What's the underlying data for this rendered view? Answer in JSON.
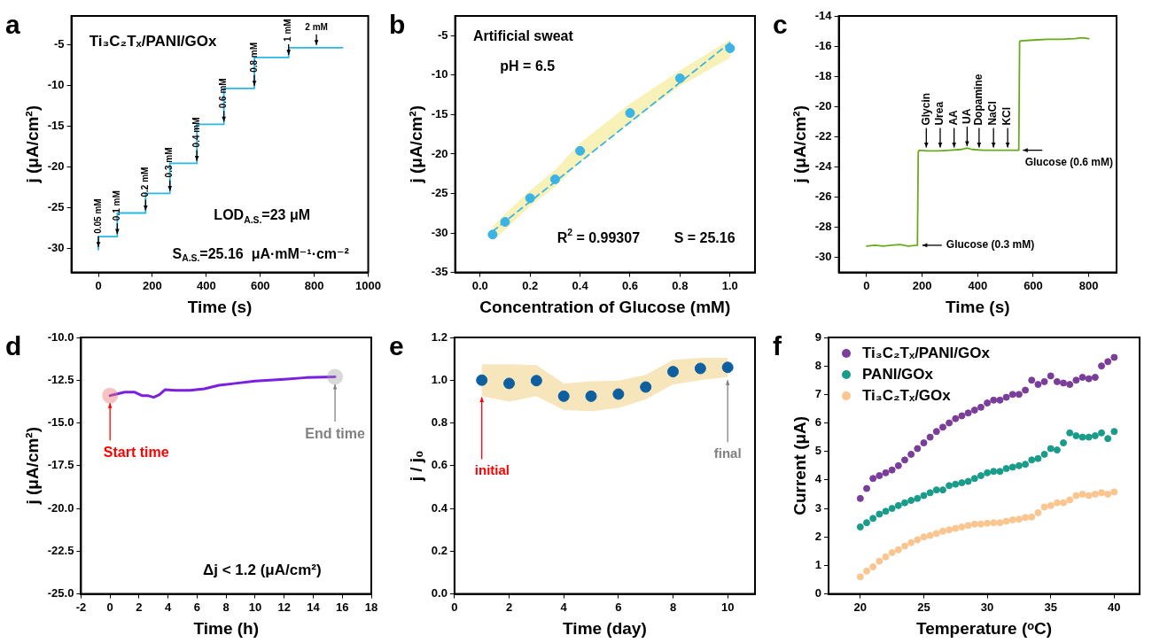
{
  "chart_data": [
    {
      "type": "step",
      "title": "a",
      "xlabel": "Time (s)",
      "ylabel": "j (μA/cm²)",
      "x": [
        0,
        70,
        175,
        265,
        365,
        465,
        578,
        705,
        808,
        905
      ],
      "series": [
        {
          "color": "#29b6e8",
          "values": [
            -30.2,
            -28.6,
            -25.7,
            -23.3,
            -19.6,
            -14.8,
            -10.4,
            -6.6,
            -5.4,
            -5.4
          ]
        }
      ],
      "xlim": [
        -100,
        1000
      ],
      "xticks": [
        0,
        200,
        400,
        600,
        800,
        1000
      ],
      "ylim": [
        -33,
        -1.5
      ],
      "yticks": [
        -30,
        -25,
        -20,
        -15,
        -10,
        -5
      ],
      "grid": false,
      "annotations": [
        "Ti₃C₂Tₓ/PANI/GOx",
        {
          "text": "0.05 mM",
          "x": 0,
          "y": -30.2
        },
        {
          "text": "0.1 mM",
          "x": 70,
          "y": -28.6
        },
        {
          "text": "0.2 mM",
          "x": 175,
          "y": -25.7
        },
        {
          "text": "0.3 mM",
          "x": 265,
          "y": -23.3
        },
        {
          "text": "0.4 mM",
          "x": 365,
          "y": -19.6
        },
        {
          "text": "0.6 mM",
          "x": 465,
          "y": -14.8
        },
        {
          "text": "0.8 mM",
          "x": 578,
          "y": -10.4
        },
        {
          "text": "1 mM",
          "x": 705,
          "y": -6.6
        },
        {
          "text": "2 mM",
          "x": 808,
          "y": -5.4
        },
        "LOD$_{A.S.}$=23 μM",
        "S$_{A.S.}$=25.16  μA·mM⁻¹·cm⁻²"
      ]
    },
    {
      "type": "scatter",
      "title": "b",
      "xlabel": "Concentration of Glucose (mM)",
      "ylabel": "j (μA/cm²)",
      "marker": "circle",
      "series": [
        {
          "color": "#3bb4e5",
          "x": [
            0.05,
            0.1,
            0.2,
            0.3,
            0.4,
            0.6,
            0.8,
            1.0
          ],
          "values": [
            -30.2,
            -28.6,
            -25.6,
            -23.2,
            -19.6,
            -14.8,
            -10.4,
            -6.6
          ],
          "lower": [
            -31.0,
            -29.6,
            -26.6,
            -24.2,
            -21.0,
            -16.0,
            -11.4,
            -7.8
          ],
          "upper": [
            -29.2,
            -27.6,
            -24.6,
            -22.0,
            -18.6,
            -13.6,
            -9.4,
            -5.5
          ]
        },
        {
          "type": "line",
          "color": "#3bb4e5",
          "line_style": "dashed",
          "marker": "none",
          "x": [
            0.05,
            1.0
          ],
          "values": [
            -29.8,
            -5.9
          ]
        }
      ],
      "xlim": [
        -0.1,
        1.1
      ],
      "xticks": [
        {
          "value": 0,
          "label": "0.0"
        },
        0.2,
        0.4,
        0.6,
        0.8,
        {
          "value": 1,
          "label": "1.0"
        }
      ],
      "ylim": [
        -35,
        -2.5
      ],
      "yticks": [
        -35,
        -30,
        -25,
        -20,
        -15,
        -10,
        -5
      ],
      "grid": false,
      "annotations": [
        "Artificial sweat",
        "pH = 6.5",
        "R$^{2}$ = 0.99307",
        "S = 25.16"
      ]
    },
    {
      "type": "line",
      "title": "c",
      "xlabel": "Time (s)",
      "ylabel": "j (μA/cm²)",
      "x": [
        0,
        30,
        60,
        90,
        120,
        150,
        183,
        186,
        190,
        220,
        260,
        300,
        340,
        362,
        380,
        420,
        460,
        500,
        548,
        551,
        555,
        600,
        650,
        700,
        750,
        775,
        800
      ],
      "series": [
        {
          "color": "#6aaa1e",
          "values": [
            -29.25,
            -29.2,
            -29.25,
            -29.2,
            -29.15,
            -29.25,
            -29.2,
            -23.0,
            -22.9,
            -22.95,
            -22.95,
            -22.9,
            -22.85,
            -22.75,
            -22.85,
            -22.9,
            -22.9,
            -22.9,
            -22.9,
            -15.7,
            -15.65,
            -15.6,
            -15.55,
            -15.55,
            -15.5,
            -15.45,
            -15.5
          ]
        }
      ],
      "xlim": [
        -100,
        900
      ],
      "xticks": [
        0,
        200,
        400,
        600,
        800
      ],
      "ylim": [
        -31,
        -14
      ],
      "yticks": [
        -30,
        -28,
        -26,
        -24,
        -22,
        -20,
        -18,
        -16,
        -14
      ],
      "grid": false,
      "annotations": [
        {
          "text": "Glycin",
          "x": 215,
          "y": -22.9
        },
        {
          "text": "Urea",
          "x": 265,
          "y": -22.9
        },
        {
          "text": "AA",
          "x": 315,
          "y": -22.9
        },
        {
          "text": "UA",
          "x": 362,
          "y": -22.8
        },
        {
          "text": "Dopamine",
          "x": 405,
          "y": -22.9
        },
        {
          "text": "NaCl",
          "x": 457,
          "y": -22.9
        },
        {
          "text": "KCl",
          "x": 508,
          "y": -22.9
        },
        {
          "text": "Glucose (0.3 mM)",
          "x": 188,
          "y": -29.2
        },
        {
          "text": "Glucose (0.6 mM)",
          "x": 550,
          "y": -22.9
        }
      ]
    },
    {
      "type": "line",
      "title": "d",
      "xlabel": "Time (h)",
      "ylabel": "j (μA/cm²)",
      "x": [
        0,
        0.5,
        1,
        1.7,
        2.2,
        2.6,
        3,
        3.4,
        3.8,
        4.5,
        5.5,
        6.5,
        7.5,
        8.5,
        10,
        12,
        13.5,
        15.5
      ],
      "series": [
        {
          "color": "#7b1fe0",
          "values": [
            -13.4,
            -13.3,
            -13.2,
            -13.2,
            -13.4,
            -13.4,
            -13.5,
            -13.35,
            -13.05,
            -13.1,
            -13.1,
            -13.0,
            -12.8,
            -12.7,
            -12.55,
            -12.45,
            -12.35,
            -12.3
          ]
        }
      ],
      "xlim": [
        -2,
        18
      ],
      "xticks": [
        -2,
        0,
        2,
        4,
        6,
        8,
        10,
        12,
        14,
        16,
        18
      ],
      "ylim": [
        -25,
        -10
      ],
      "yticks": [
        {
          "value": -25,
          "label": "-25.0"
        },
        -22.5,
        {
          "value": -20,
          "label": "-20.0"
        },
        -17.5,
        {
          "value": -15,
          "label": "-15.0"
        },
        -12.5,
        {
          "value": -10,
          "label": "-10.0"
        }
      ],
      "grid": false,
      "annotations": [
        {
          "text": "Start time",
          "x": 0,
          "y": -13.85
        },
        {
          "text": "End time",
          "x": 15.5,
          "y": -12.75
        },
        "Δj < 1.2 (μA/cm²)"
      ]
    },
    {
      "type": "scatter",
      "title": "e",
      "xlabel": "Time (day)",
      "ylabel": "j / j₀",
      "marker": "circle",
      "x": [
        1,
        2,
        3,
        4,
        5,
        6,
        7,
        8,
        9,
        10
      ],
      "series": [
        {
          "color": "#0d5fa0",
          "values": [
            1.0,
            0.985,
            0.998,
            0.925,
            0.925,
            0.935,
            0.968,
            1.04,
            1.055,
            1.06
          ],
          "lower": [
            0.925,
            0.9,
            0.925,
            0.86,
            0.855,
            0.87,
            0.91,
            0.98,
            1.0,
            1.015
          ],
          "upper": [
            1.075,
            1.075,
            1.07,
            0.985,
            0.995,
            0.998,
            1.025,
            1.095,
            1.105,
            1.105
          ]
        }
      ],
      "xlim": [
        0,
        11
      ],
      "xticks": [
        0,
        2,
        4,
        6,
        8,
        10
      ],
      "ylim": [
        0,
        1.2
      ],
      "yticks": [
        {
          "value": 0,
          "label": "0.0"
        },
        0.2,
        0.4,
        0.6,
        0.8,
        {
          "value": 1,
          "label": "1.0"
        },
        1.2
      ],
      "grid": false,
      "annotations": [
        {
          "text": "initial",
          "x": 1,
          "y": 0.92
        },
        {
          "text": "final",
          "x": 10,
          "y": 1.0
        }
      ]
    },
    {
      "type": "scatter",
      "title": "f",
      "xlabel": "Temperature (ᵒC)",
      "ylabel": "Current (μA)",
      "marker": "circle",
      "legend": "top left",
      "x": [
        20,
        20.5,
        21,
        21.5,
        22,
        22.5,
        23,
        23.5,
        24,
        24.5,
        25,
        25.5,
        26,
        26.5,
        27,
        27.5,
        28,
        28.5,
        29,
        29.5,
        30,
        30.5,
        31,
        31.5,
        32,
        32.5,
        33,
        33.5,
        34,
        34.5,
        35,
        35.5,
        36,
        36.5,
        37,
        37.5,
        38,
        38.5,
        39,
        39.5,
        40
      ],
      "series": [
        {
          "name": "Ti₃C₂Tₓ/PANI/GOx",
          "color": "#7a3d9a",
          "values": [
            3.35,
            3.7,
            4.05,
            4.15,
            4.25,
            4.35,
            4.5,
            4.7,
            4.9,
            5.1,
            5.3,
            5.5,
            5.7,
            5.85,
            6.0,
            6.15,
            6.25,
            6.35,
            6.45,
            6.55,
            6.7,
            6.8,
            6.8,
            6.9,
            7.0,
            7.0,
            7.15,
            7.5,
            7.35,
            7.45,
            7.65,
            7.45,
            7.4,
            7.35,
            7.5,
            7.6,
            7.55,
            7.6,
            8.0,
            8.15,
            8.3
          ]
        },
        {
          "name": "PANI/GOx",
          "color": "#1a9c8a",
          "values": [
            2.35,
            2.5,
            2.65,
            2.8,
            2.9,
            3.0,
            3.1,
            3.2,
            3.28,
            3.35,
            3.45,
            3.55,
            3.65,
            3.65,
            3.8,
            3.85,
            3.9,
            3.95,
            4.05,
            4.15,
            4.25,
            4.3,
            4.3,
            4.4,
            4.45,
            4.5,
            4.55,
            4.7,
            4.75,
            4.9,
            5.1,
            5.05,
            5.3,
            5.65,
            5.55,
            5.5,
            5.5,
            5.55,
            5.65,
            5.45,
            5.7
          ]
        },
        {
          "name": "Ti₃C₂Tₓ/GOx",
          "color": "#fbc58f",
          "values": [
            0.6,
            0.8,
            0.95,
            1.15,
            1.3,
            1.45,
            1.55,
            1.68,
            1.8,
            1.9,
            2.0,
            2.05,
            2.12,
            2.2,
            2.25,
            2.3,
            2.35,
            2.4,
            2.45,
            2.45,
            2.48,
            2.5,
            2.5,
            2.55,
            2.6,
            2.62,
            2.68,
            2.7,
            2.85,
            3.05,
            3.1,
            3.2,
            3.2,
            3.3,
            3.45,
            3.5,
            3.45,
            3.5,
            3.55,
            3.5,
            3.58
          ]
        }
      ],
      "xlim": [
        17.5,
        42
      ],
      "xticks": [
        20,
        25,
        30,
        35,
        40
      ],
      "ylim": [
        0,
        9
      ],
      "yticks": [
        0,
        1,
        2,
        3,
        4,
        5,
        6,
        7,
        8,
        9
      ],
      "grid": false
    }
  ]
}
